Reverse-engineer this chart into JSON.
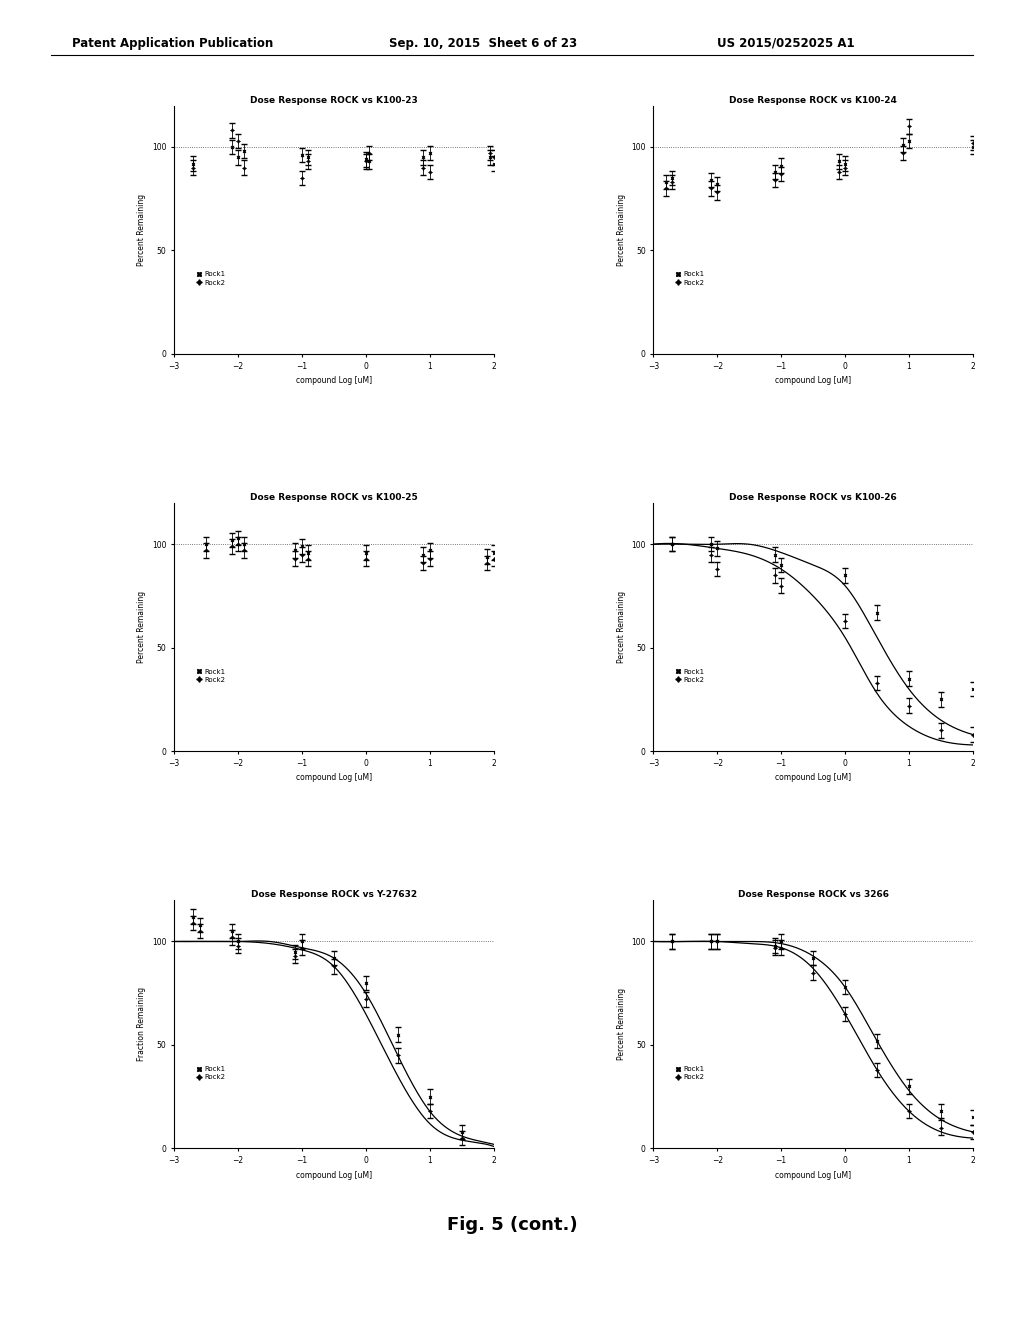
{
  "header_left": "Patent Application Publication",
  "header_mid": "Sep. 10, 2015  Sheet 6 of 23",
  "header_right": "US 2015/0252025 A1",
  "footer": "Fig. 5 (cont.)",
  "background_color": "#ffffff",
  "plots": [
    {
      "title": "Dose Response ROCK vs K100-23",
      "ylabel": "Percent Remaining",
      "xlabel": "compound Log [uM]",
      "xlim": [
        -3,
        2
      ],
      "ylim": [
        0,
        120
      ],
      "yticks": [
        0,
        50,
        100
      ],
      "xticks": [
        -3,
        -2,
        -1,
        0,
        1,
        2
      ],
      "legend": [
        "Rock1",
        "Rock2"
      ],
      "type": "scatter_flat",
      "rock1_x": [
        -2.7,
        -2.1,
        -2.0,
        -1.9,
        -1.0,
        -0.9,
        0.0,
        0.05,
        0.9,
        1.0,
        1.95,
        2.0
      ],
      "rock1_y": [
        92,
        100,
        95,
        98,
        96,
        95,
        94,
        93,
        95,
        97,
        95,
        92
      ],
      "rock2_x": [
        -2.7,
        -2.1,
        -2.0,
        -1.9,
        -1.0,
        -0.9,
        0.0,
        0.05,
        0.9,
        1.0,
        1.95,
        2.0
      ],
      "rock2_y": [
        90,
        108,
        103,
        90,
        85,
        93,
        93,
        97,
        90,
        88,
        97,
        95
      ],
      "has_sigmoid": false
    },
    {
      "title": "Dose Response ROCK vs K100-24",
      "ylabel": "Percent Remaining",
      "xlabel": "compound Log [uM]",
      "xlim": [
        -3,
        2
      ],
      "ylim": [
        0,
        120
      ],
      "yticks": [
        0,
        50,
        100
      ],
      "xticks": [
        -3,
        -2,
        -1,
        0,
        1,
        2
      ],
      "legend": [
        "Rock1",
        "Rock2"
      ],
      "type": "scatter_flat",
      "rock1_x": [
        -2.8,
        -2.7,
        -2.1,
        -2.0,
        -1.1,
        -1.0,
        -0.1,
        0.0,
        0.9,
        1.0,
        2.0
      ],
      "rock1_y": [
        83,
        85,
        84,
        82,
        88,
        91,
        93,
        92,
        101,
        103,
        100
      ],
      "rock2_x": [
        -2.8,
        -2.7,
        -2.1,
        -2.0,
        -1.1,
        -1.0,
        -0.1,
        0.0,
        0.9,
        1.0,
        2.0
      ],
      "rock2_y": [
        80,
        83,
        80,
        78,
        84,
        87,
        88,
        90,
        97,
        110,
        102
      ],
      "has_sigmoid": false
    },
    {
      "title": "Dose Response ROCK vs K100-25",
      "ylabel": "Percent Remaining",
      "xlabel": "compound Log [uM]",
      "xlim": [
        -3,
        2
      ],
      "ylim": [
        0,
        120
      ],
      "yticks": [
        0,
        50,
        100
      ],
      "xticks": [
        -3,
        -2,
        -1,
        0,
        1,
        2
      ],
      "legend": [
        "Rock1",
        "Rock2"
      ],
      "type": "scatter_flat",
      "rock1_x": [
        -2.5,
        -2.1,
        -2.0,
        -1.9,
        -1.1,
        -1.0,
        -0.9,
        0.0,
        0.9,
        1.0,
        1.9,
        2.0
      ],
      "rock1_y": [
        100,
        102,
        103,
        100,
        97,
        99,
        96,
        96,
        95,
        97,
        94,
        96
      ],
      "rock2_x": [
        -2.5,
        -2.1,
        -2.0,
        -1.9,
        -1.1,
        -1.0,
        -0.9,
        0.0,
        0.9,
        1.0,
        1.9,
        2.0
      ],
      "rock2_y": [
        97,
        99,
        100,
        97,
        93,
        95,
        93,
        93,
        91,
        93,
        91,
        93
      ],
      "has_sigmoid": false
    },
    {
      "title": "Dose Response ROCK vs K100-26",
      "ylabel": "Percent Remaining",
      "xlabel": "compound Log [uM]",
      "xlim": [
        -3,
        2
      ],
      "ylim": [
        0,
        120
      ],
      "yticks": [
        0,
        50,
        100
      ],
      "xticks": [
        -3,
        -2,
        -1,
        0,
        1,
        2
      ],
      "legend": [
        "Rock1",
        "Rock2"
      ],
      "type": "sigmoid",
      "rock1_x": [
        -2.7,
        -2.1,
        -2.0,
        -1.1,
        -1.0,
        0.0,
        0.5,
        1.0,
        1.5,
        2.0
      ],
      "rock1_y": [
        100,
        100,
        98,
        95,
        90,
        85,
        67,
        35,
        25,
        30
      ],
      "rock2_x": [
        -2.7,
        -2.1,
        -2.0,
        -1.1,
        -1.0,
        0.0,
        0.5,
        1.0,
        1.5,
        2.0
      ],
      "rock2_y": [
        100,
        95,
        88,
        85,
        80,
        63,
        33,
        22,
        10,
        8
      ],
      "has_sigmoid": true,
      "sigmoid1_x": [
        -3,
        -2.5,
        -2.0,
        -1.5,
        -1.0,
        -0.5,
        0.0,
        0.5,
        1.0,
        1.5,
        2.0
      ],
      "sigmoid1_y": [
        100,
        100,
        100,
        100,
        96,
        90,
        80,
        55,
        30,
        15,
        8
      ],
      "sigmoid2_x": [
        -3,
        -2.5,
        -2.0,
        -1.5,
        -1.0,
        -0.5,
        0.0,
        0.5,
        1.0,
        1.5,
        2.0
      ],
      "sigmoid2_y": [
        100,
        100,
        98,
        95,
        88,
        75,
        55,
        28,
        12,
        5,
        3
      ]
    },
    {
      "title": "Dose Response ROCK vs Y-27632",
      "ylabel": "Fraction Remaining",
      "xlabel": "compound Log [uM]",
      "xlim": [
        -3,
        2
      ],
      "ylim": [
        0,
        120
      ],
      "yticks": [
        0,
        50,
        100
      ],
      "xticks": [
        -3,
        -2,
        -1,
        0,
        1,
        2
      ],
      "legend": [
        "Rock1",
        "Rock2"
      ],
      "type": "sigmoid",
      "rock1_x": [
        -2.7,
        -2.6,
        -2.1,
        -2.0,
        -1.1,
        -1.0,
        -0.5,
        0.0,
        0.5,
        1.0,
        1.5
      ],
      "rock1_y": [
        112,
        108,
        105,
        100,
        95,
        100,
        92,
        80,
        55,
        25,
        8
      ],
      "rock2_x": [
        -2.7,
        -2.6,
        -2.1,
        -2.0,
        -1.1,
        -1.0,
        -0.5,
        0.0,
        0.5,
        1.0,
        1.5
      ],
      "rock2_y": [
        109,
        105,
        102,
        98,
        93,
        97,
        88,
        72,
        45,
        18,
        5
      ],
      "has_sigmoid": true,
      "sigmoid1_x": [
        -3,
        -2.5,
        -2.0,
        -1.5,
        -1.0,
        -0.5,
        0.0,
        0.5,
        1.0,
        1.5,
        2.0
      ],
      "sigmoid1_y": [
        100,
        100,
        100,
        100,
        97,
        92,
        75,
        45,
        18,
        6,
        2
      ],
      "sigmoid2_x": [
        -3,
        -2.5,
        -2.0,
        -1.5,
        -1.0,
        -0.5,
        0.0,
        0.5,
        1.0,
        1.5,
        2.0
      ],
      "sigmoid2_y": [
        100,
        100,
        100,
        99,
        96,
        88,
        65,
        35,
        12,
        4,
        1
      ]
    },
    {
      "title": "Dose Response ROCK vs 3266",
      "ylabel": "Percent Remaining",
      "xlabel": "compound Log [uM]",
      "xlim": [
        -3,
        2
      ],
      "ylim": [
        0,
        120
      ],
      "yticks": [
        0,
        50,
        100
      ],
      "xticks": [
        -3,
        -2,
        -1,
        0,
        1,
        2
      ],
      "legend": [
        "Rock1",
        "Rock2"
      ],
      "type": "sigmoid",
      "rock1_x": [
        -2.7,
        -2.1,
        -2.0,
        -1.1,
        -1.0,
        -0.5,
        0.0,
        0.5,
        1.0,
        1.5,
        2.0
      ],
      "rock1_y": [
        100,
        100,
        100,
        98,
        100,
        92,
        78,
        52,
        30,
        18,
        15
      ],
      "rock2_x": [
        -2.7,
        -2.1,
        -2.0,
        -1.1,
        -1.0,
        -0.5,
        0.0,
        0.5,
        1.0,
        1.5,
        2.0
      ],
      "rock2_y": [
        100,
        100,
        100,
        97,
        97,
        85,
        65,
        38,
        18,
        10,
        8
      ],
      "has_sigmoid": true,
      "sigmoid1_x": [
        -3,
        -2.5,
        -2.0,
        -1.5,
        -1.0,
        -0.5,
        0.0,
        0.5,
        1.0,
        1.5,
        2.0
      ],
      "sigmoid1_y": [
        100,
        100,
        100,
        100,
        99,
        93,
        78,
        52,
        28,
        14,
        8
      ],
      "sigmoid2_x": [
        -3,
        -2.5,
        -2.0,
        -1.5,
        -1.0,
        -0.5,
        0.0,
        0.5,
        1.0,
        1.5,
        2.0
      ],
      "sigmoid2_y": [
        100,
        100,
        100,
        99,
        97,
        87,
        65,
        38,
        18,
        8,
        5
      ]
    }
  ]
}
